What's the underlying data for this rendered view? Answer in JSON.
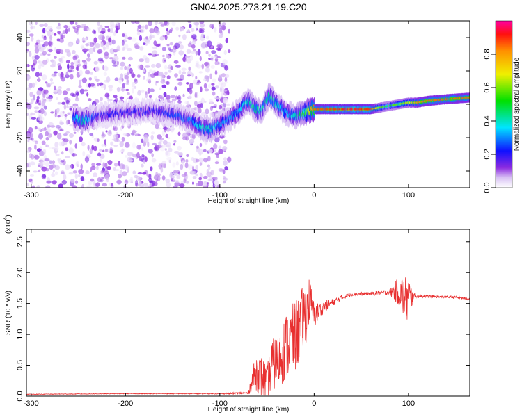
{
  "title": "GN04.2025.273.21.19.C20",
  "colors": {
    "snr_line": "#e83030",
    "axis": "#000000"
  },
  "chart_data": [
    {
      "type": "heatmap",
      "xlabel": "Height of straight line (km)",
      "ylabel": "Frequency (Hz)",
      "xlim": [
        -305,
        165
      ],
      "ylim": [
        -50,
        50
      ],
      "x_ticks": [
        -300,
        -200,
        -100,
        0,
        100
      ],
      "x_tick_labels": [
        "-300",
        "-200",
        "-100",
        "0",
        "100"
      ],
      "y_ticks": [
        -40,
        -20,
        0,
        20,
        40
      ],
      "y_tick_labels": [
        "-40",
        "-20",
        "0",
        "20",
        "40"
      ],
      "grid": false,
      "colorbar": {
        "label": "Normalized spectral amplitude",
        "range": [
          0,
          1
        ],
        "ticks": [
          0.0,
          0.2,
          0.4,
          0.6,
          0.8
        ],
        "tick_labels": [
          "0.0",
          "0.2",
          "0.4",
          "0.6",
          "0.8"
        ],
        "colormap": "rainbow"
      },
      "noise_region": {
        "x": [
          -305,
          -90
        ],
        "y": [
          -50,
          50
        ],
        "amplitude": 0.1
      },
      "ridge": {
        "x": [
          -255,
          -245,
          -230,
          -200,
          -170,
          -150,
          -130,
          -120,
          -110,
          -100,
          -90,
          -80,
          -70,
          -62,
          -55,
          -48,
          -40,
          -30,
          -20,
          -10,
          0,
          20,
          40,
          60,
          70,
          80,
          90,
          100,
          110,
          120,
          140,
          165
        ],
        "y": [
          -8,
          -10,
          -7,
          -5,
          -4,
          -6,
          -10,
          -14,
          -15,
          -12,
          -9,
          -4,
          2,
          -3,
          -4,
          5,
          0,
          -5,
          -7,
          -5,
          -3,
          -3,
          -3,
          -3,
          -2,
          -1,
          0,
          1,
          1,
          2,
          3,
          4
        ],
        "amplitude": [
          0.3,
          0.45,
          0.2,
          0.2,
          0.2,
          0.25,
          0.3,
          0.4,
          0.4,
          0.35,
          0.3,
          0.35,
          0.4,
          0.45,
          0.4,
          0.45,
          0.4,
          0.35,
          0.4,
          0.55,
          0.85,
          0.9,
          0.95,
          0.9,
          0.6,
          0.55,
          0.6,
          0.65,
          0.8,
          0.85,
          0.85,
          0.85
        ]
      }
    },
    {
      "type": "line",
      "xlabel": "Height of straight line (km)",
      "ylabel": "SNR (10 * v/v)",
      "y_multiplier_label": "(x10",
      "y_multiplier_exp": "4",
      "y_multiplier_close": ")",
      "xlim": [
        -305,
        165
      ],
      "ylim": [
        0,
        2.7
      ],
      "x_ticks": [
        -300,
        -200,
        -100,
        0,
        100
      ],
      "x_tick_labels": [
        "-300",
        "-200",
        "-100",
        "0",
        "100"
      ],
      "y_ticks": [
        0.0,
        0.5,
        1.0,
        1.5,
        2.0,
        2.5
      ],
      "y_tick_labels": [
        "0.0",
        "0.5",
        "1.0",
        "1.5",
        "2.0",
        "2.5"
      ],
      "grid": false,
      "series": [
        {
          "x": [
            -305,
            -200,
            -100,
            -70,
            -62,
            -55,
            -50,
            -45,
            -40,
            -30,
            -20,
            -15,
            -10,
            -5,
            0,
            10,
            20,
            30,
            40,
            60,
            80,
            90,
            95,
            100,
            105,
            110,
            130,
            150,
            165
          ],
          "y": [
            0.03,
            0.04,
            0.04,
            0.05,
            0.4,
            0.3,
            0.2,
            0.5,
            0.55,
            0.8,
            0.95,
            1.1,
            1.3,
            1.55,
            1.3,
            1.45,
            1.52,
            1.6,
            1.65,
            1.66,
            1.68,
            1.7,
            1.6,
            1.55,
            1.62,
            1.62,
            1.61,
            1.6,
            1.57
          ],
          "noise": [
            0.005,
            0.005,
            0.008,
            0.02,
            0.3,
            0.35,
            0.3,
            0.4,
            0.45,
            0.55,
            0.6,
            0.6,
            0.55,
            0.4,
            0.2,
            0.1,
            0.06,
            0.04,
            0.03,
            0.03,
            0.05,
            0.25,
            0.35,
            0.45,
            0.06,
            0.03,
            0.02,
            0.02,
            0.02
          ]
        }
      ]
    }
  ]
}
